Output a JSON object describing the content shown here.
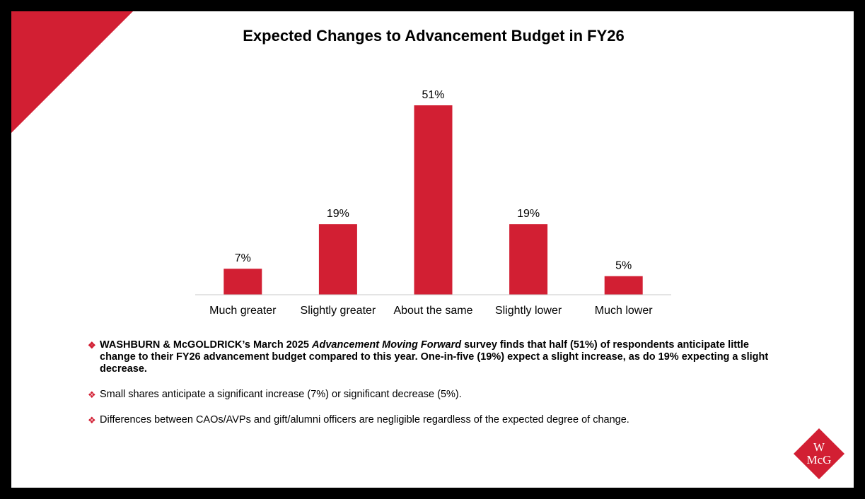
{
  "slide": {
    "title": "Expected Changes to Advancement Budget in FY26",
    "accent_color": "#d21f33"
  },
  "chart_data": {
    "type": "bar",
    "title": "Expected Changes to Advancement Budget in FY26",
    "categories": [
      "Much greater",
      "Slightly greater",
      "About the same",
      "Slightly lower",
      "Much lower"
    ],
    "values": [
      7,
      19,
      51,
      19,
      5
    ],
    "value_labels": [
      "7%",
      "19%",
      "51%",
      "19%",
      "5%"
    ],
    "unit": "%",
    "bar_color": "#d21f33",
    "xlabel": "",
    "ylabel": "",
    "ylim": [
      0,
      51
    ],
    "grid": false,
    "legend": false
  },
  "bullets": [
    {
      "parts": [
        {
          "text": "WASHBURN & McGOLDRICK’s March 2025 ",
          "italic": false
        },
        {
          "text": "Advancement Moving Forward",
          "italic": true
        },
        {
          "text": " survey finds that half (51%) of respondents anticipate little change to their FY26 advancement budget compared to this year. One-in-five (19%) expect a slight increase, as do 19% expecting a slight decrease.",
          "italic": false
        }
      ],
      "bold": true
    },
    {
      "parts": [
        {
          "text": "Small shares anticipate a significant increase (7%) or significant decrease (5%).",
          "italic": false
        }
      ],
      "bold": false
    },
    {
      "parts": [
        {
          "text": "Differences between CAOs/AVPs and gift/alumni officers are negligible regardless of the expected degree of change.",
          "italic": false
        }
      ],
      "bold": false
    }
  ],
  "bullet_marker": "❖",
  "logo": {
    "top_text": "W",
    "bottom_text": "McG",
    "color": "#d21f33"
  }
}
